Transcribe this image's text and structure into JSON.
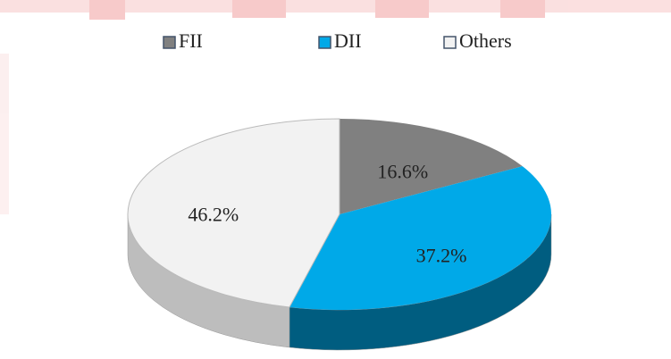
{
  "chart_data": {
    "type": "pie",
    "categories": [
      "FII",
      "DII",
      "Others"
    ],
    "values": [
      16.6,
      37.2,
      46.2
    ],
    "value_labels": [
      "16.6%",
      "37.2%",
      "46.2%"
    ],
    "colors": [
      "#808080",
      "#00a9e8",
      "#f2f2f2"
    ],
    "legend": "top"
  }
}
